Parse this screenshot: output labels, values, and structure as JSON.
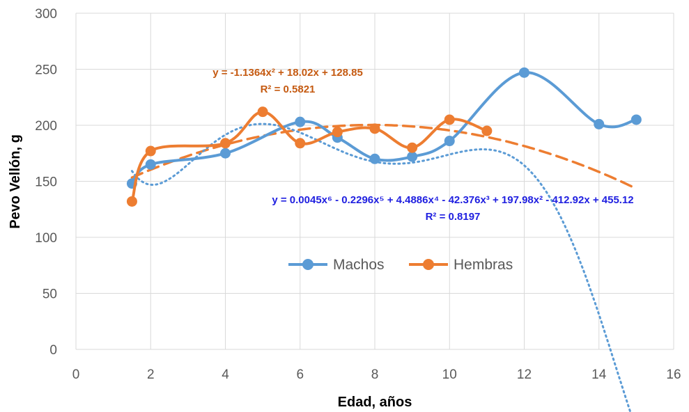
{
  "chart_data": {
    "type": "line",
    "xlabel": "Edad, años",
    "ylabel": "Pevo Vellón, g",
    "xlim": [
      0,
      16
    ],
    "ylim": [
      0,
      300
    ],
    "xticks": [
      0,
      2,
      4,
      6,
      8,
      10,
      12,
      14,
      16
    ],
    "yticks": [
      0,
      50,
      100,
      150,
      200,
      250,
      300
    ],
    "grid": true,
    "legend": "center",
    "series": [
      {
        "name": "Machos",
        "color": "#5B9BD5",
        "x": [
          1.5,
          2,
          4,
          6,
          7,
          8,
          9,
          10,
          12,
          14,
          15
        ],
        "y": [
          148,
          165,
          175,
          203,
          189,
          170,
          172,
          186,
          247,
          201,
          205
        ]
      },
      {
        "name": "Hembras",
        "color": "#ED7D31",
        "x": [
          1.5,
          2,
          4,
          5,
          6,
          7,
          8,
          9,
          10,
          11
        ],
        "y": [
          132,
          177,
          184,
          212,
          184,
          194,
          197,
          180,
          205,
          195
        ]
      }
    ],
    "trendlines": [
      {
        "series": "Hembras",
        "kind": "polynomial-2",
        "style": "dashed",
        "color": "#ED7D31",
        "coefficients": [
          128.85,
          18.02,
          -1.1364
        ],
        "x_range": [
          1.5,
          15
        ],
        "equation": "y = -1.1364x² + 18.02x + 128.85",
        "r2": "R² = 0.5821",
        "label_color": "#C55A11"
      },
      {
        "series": "Machos",
        "kind": "polynomial-6",
        "style": "dotted",
        "color": "#5B9BD5",
        "coefficients": [
          455.12,
          -412.92,
          197.98,
          -42.376,
          4.4886,
          -0.2296,
          0.0045
        ],
        "x_range": [
          1.5,
          15
        ],
        "equation": "y = 0.0045x⁶ - 0.2296x⁵ + 4.4886x⁴ - 42.376x³ + 197.98x² - 412.92x + 455.12",
        "r2": "R² = 0.8197",
        "label_color": "#1F1FE0"
      }
    ]
  }
}
